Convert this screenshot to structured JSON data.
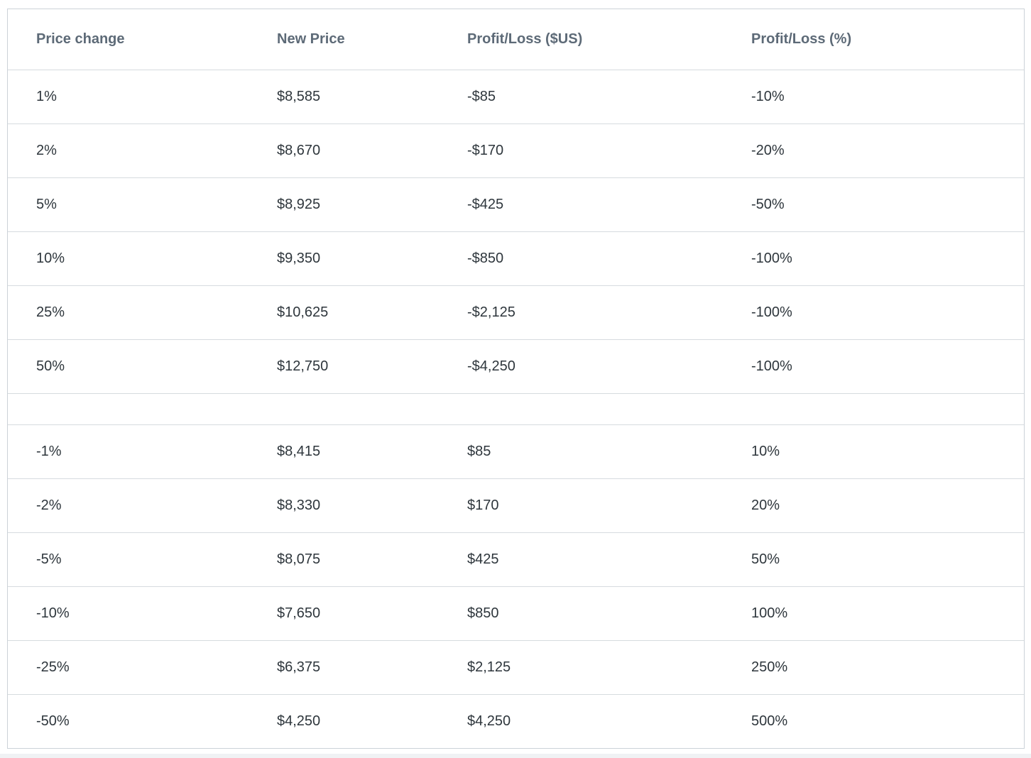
{
  "table": {
    "columns": [
      "Price change",
      "New Price",
      "Profit/Loss ($US)",
      "Profit/Loss (%)"
    ],
    "rows": [
      [
        "1%",
        "$8,585",
        "-$85",
        "-10%"
      ],
      [
        "2%",
        "$8,670",
        "-$170",
        "-20%"
      ],
      [
        "5%",
        "$8,925",
        "-$425",
        "-50%"
      ],
      [
        "10%",
        "$9,350",
        "-$850",
        "-100%"
      ],
      [
        "25%",
        "$10,625",
        "-$2,125",
        "-100%"
      ],
      [
        "50%",
        "$12,750",
        "-$4,250",
        "-100%"
      ],
      [
        "",
        "",
        "",
        ""
      ],
      [
        "-1%",
        "$8,415",
        "$85",
        "10%"
      ],
      [
        "-2%",
        "$8,330",
        "$170",
        "20%"
      ],
      [
        "-5%",
        "$8,075",
        "$425",
        "50%"
      ],
      [
        "-10%",
        "$7,650",
        "$850",
        "100%"
      ],
      [
        "-25%",
        "$6,375",
        "$2,125",
        "250%"
      ],
      [
        "-50%",
        "$4,250",
        "$4,250",
        "500%"
      ]
    ]
  },
  "colors": {
    "header_text": "#5d6a77",
    "body_text": "#2e363c",
    "border": "#d3d8dd",
    "background": "#ffffff"
  }
}
